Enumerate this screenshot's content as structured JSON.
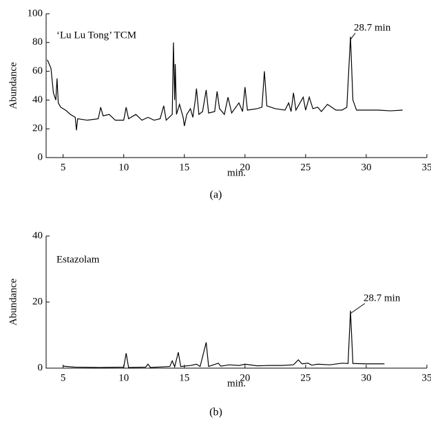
{
  "chart_data": [
    {
      "type": "line",
      "title": "‘Lu Lu Tong’ TCM",
      "annotation": "28.7 min",
      "xlabel": "min.",
      "ylabel": "Abundance",
      "caption": "(a)",
      "xlim": [
        3.6,
        35
      ],
      "xticks": [
        5,
        10,
        15,
        20,
        25,
        30,
        35
      ],
      "ylim": [
        0,
        100
      ],
      "yticks": [
        0,
        20,
        40,
        60,
        80,
        100
      ],
      "series": [
        {
          "color": "#000000",
          "x": [
            3.7,
            4.0,
            4.2,
            4.4,
            4.5,
            4.6,
            4.8,
            5.2,
            5.6,
            6.0,
            6.1,
            6.2,
            7.0,
            7.9,
            8.1,
            8.3,
            8.8,
            9.3,
            10.0,
            10.2,
            10.4,
            11.0,
            11.5,
            12.0,
            12.5,
            13.0,
            13.3,
            13.5,
            14.0,
            14.1,
            14.2,
            14.25,
            14.35,
            14.6,
            14.9,
            15.0,
            15.2,
            15.5,
            15.7,
            15.9,
            16.0,
            16.2,
            16.5,
            16.8,
            17.0,
            17.5,
            17.7,
            17.9,
            18.3,
            18.6,
            18.9,
            19.5,
            19.8,
            20.0,
            20.2,
            21.0,
            21.4,
            21.6,
            21.8,
            22.5,
            23.3,
            23.6,
            23.8,
            24.0,
            24.2,
            24.8,
            25.0,
            25.3,
            25.6,
            26.0,
            26.3,
            26.8,
            27.5,
            28.0,
            28.4,
            28.7,
            28.9,
            29.2,
            30.0,
            31.0,
            32.0,
            33.0
          ],
          "values": [
            68,
            62,
            45,
            40,
            55,
            38,
            35,
            33,
            30,
            28,
            19,
            27,
            26,
            27,
            35,
            29,
            30,
            26,
            26,
            35,
            27,
            30,
            26,
            28,
            26,
            27,
            36,
            26,
            30,
            80,
            40,
            65,
            30,
            37,
            28,
            22,
            30,
            34,
            28,
            40,
            48,
            30,
            32,
            47,
            31,
            32,
            46,
            34,
            30,
            42,
            31,
            38,
            32,
            49,
            33,
            34,
            35,
            60,
            36,
            34,
            33,
            38,
            32,
            45,
            33,
            42,
            33,
            42,
            34,
            35,
            32,
            37,
            33,
            33,
            35,
            84,
            40,
            33,
            33,
            33,
            32.5,
            33
          ]
        }
      ]
    },
    {
      "type": "line",
      "title": "Estazolam",
      "annotation": "28.7 min",
      "xlabel": "min.",
      "ylabel": "Abundance",
      "caption": "(b)",
      "xlim": [
        3.6,
        35
      ],
      "xticks": [
        5,
        10,
        15,
        20,
        25,
        30,
        35
      ],
      "ylim": [
        0,
        40
      ],
      "yticks": [
        0,
        20,
        40
      ],
      "series": [
        {
          "color": "#000000",
          "x": [
            5.0,
            6.0,
            8.0,
            10.0,
            10.2,
            10.4,
            11.8,
            12.0,
            12.2,
            13.8,
            14.0,
            14.2,
            14.5,
            14.7,
            15.5,
            16.0,
            16.3,
            16.8,
            17.0,
            17.8,
            18.0,
            18.7,
            19.5,
            20.0,
            21.0,
            22.0,
            23.0,
            24.0,
            24.4,
            24.7,
            25.2,
            25.5,
            26.0,
            27.0,
            28.0,
            28.5,
            28.7,
            28.9,
            30.0,
            31.5
          ],
          "values": [
            0.6,
            0.3,
            0.2,
            0.3,
            4.5,
            0.2,
            0.3,
            1.2,
            0.2,
            0.5,
            2.2,
            0.4,
            4.8,
            0.5,
            0.8,
            1.2,
            0.5,
            7.8,
            0.5,
            1.5,
            0.6,
            1.0,
            0.8,
            1.2,
            0.7,
            0.8,
            0.8,
            1.0,
            2.5,
            1.3,
            1.5,
            0.9,
            1.2,
            1.0,
            1.5,
            1.4,
            17.4,
            1.4,
            1.3,
            1.3
          ]
        }
      ]
    }
  ]
}
